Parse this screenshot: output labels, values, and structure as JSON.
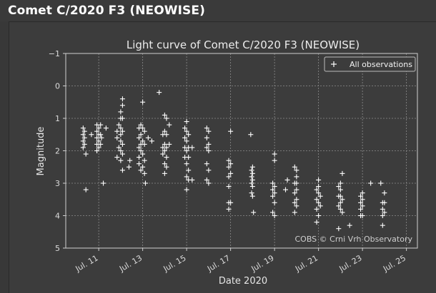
{
  "page": {
    "title": "Comet C/2020 F3 (NEOWISE)"
  },
  "chart_data": {
    "type": "scatter",
    "title": "Light curve of Comet C/2020 F3 (NEOWISE)",
    "xlabel": "Date 2020",
    "ylabel": "Magnitude",
    "x_type": "date",
    "xlim": [
      "2020-07-09T12:00",
      "2020-07-25T12:00"
    ],
    "ylim": [
      5,
      -1
    ],
    "y_inverted": true,
    "x_ticks": [
      {
        "date": "2020-07-11",
        "label": "Jul. 11"
      },
      {
        "date": "2020-07-13",
        "label": "Jul. 13"
      },
      {
        "date": "2020-07-15",
        "label": "Jul. 15"
      },
      {
        "date": "2020-07-17",
        "label": "Jul. 17"
      },
      {
        "date": "2020-07-19",
        "label": "Jul. 19"
      },
      {
        "date": "2020-07-21",
        "label": "Jul. 21"
      },
      {
        "date": "2020-07-23",
        "label": "Jul. 23"
      },
      {
        "date": "2020-07-25",
        "label": "Jul. 25"
      }
    ],
    "y_ticks": [
      -1,
      0,
      1,
      2,
      3,
      4,
      5
    ],
    "grid": true,
    "legend": {
      "position": "top-right",
      "entries": [
        "All observations"
      ]
    },
    "marker": "+",
    "marker_color": "#ffffff",
    "background_color": "#3c3c3c",
    "grid_color": "#8c8c8c",
    "annotation": "COBS © Crni Vrh Observatory",
    "series": [
      {
        "name": "All observations",
        "points": [
          [
            "2020-07-10T07:00",
            1.3
          ],
          [
            "2020-07-10T07:00",
            1.5
          ],
          [
            "2020-07-10T07:00",
            1.7
          ],
          [
            "2020-07-10T07:00",
            1.9
          ],
          [
            "2020-07-10T08:30",
            1.4
          ],
          [
            "2020-07-10T08:30",
            1.6
          ],
          [
            "2020-07-10T08:30",
            1.8
          ],
          [
            "2020-07-10T10:00",
            2.1
          ],
          [
            "2020-07-10T10:00",
            3.2
          ],
          [
            "2020-07-10T16:00",
            1.5
          ],
          [
            "2020-07-10T22:00",
            1.2
          ],
          [
            "2020-07-10T22:00",
            1.4
          ],
          [
            "2020-07-10T22:00",
            1.6
          ],
          [
            "2020-07-10T22:00",
            1.8
          ],
          [
            "2020-07-10T22:00",
            2.0
          ],
          [
            "2020-07-11T00:00",
            1.3
          ],
          [
            "2020-07-11T00:00",
            1.5
          ],
          [
            "2020-07-11T00:00",
            1.7
          ],
          [
            "2020-07-11T00:00",
            1.9
          ],
          [
            "2020-07-11T02:00",
            1.2
          ],
          [
            "2020-07-11T02:00",
            1.5
          ],
          [
            "2020-07-11T02:00",
            1.8
          ],
          [
            "2020-07-11T03:00",
            1.6
          ],
          [
            "2020-07-11T05:00",
            3.0
          ],
          [
            "2020-07-11T08:00",
            1.3
          ],
          [
            "2020-07-11T20:00",
            1.4
          ],
          [
            "2020-07-11T20:00",
            1.6
          ],
          [
            "2020-07-11T20:00",
            2.2
          ],
          [
            "2020-07-11T22:00",
            1.2
          ],
          [
            "2020-07-11T22:00",
            1.9
          ],
          [
            "2020-07-12T00:00",
            0.8
          ],
          [
            "2020-07-12T00:00",
            1.0
          ],
          [
            "2020-07-12T00:00",
            1.3
          ],
          [
            "2020-07-12T00:00",
            1.5
          ],
          [
            "2020-07-12T00:00",
            1.7
          ],
          [
            "2020-07-12T00:00",
            2.0
          ],
          [
            "2020-07-12T00:00",
            2.3
          ],
          [
            "2020-07-12T02:00",
            0.4
          ],
          [
            "2020-07-12T02:00",
            0.6
          ],
          [
            "2020-07-12T02:00",
            1.0
          ],
          [
            "2020-07-12T02:00",
            1.4
          ],
          [
            "2020-07-12T02:00",
            1.8
          ],
          [
            "2020-07-12T02:00",
            2.1
          ],
          [
            "2020-07-12T02:00",
            2.6
          ],
          [
            "2020-07-12T09:00",
            2.5
          ],
          [
            "2020-07-12T10:00",
            2.3
          ],
          [
            "2020-07-12T20:00",
            1.3
          ],
          [
            "2020-07-12T20:00",
            1.6
          ],
          [
            "2020-07-12T20:00",
            1.9
          ],
          [
            "2020-07-12T20:00",
            2.2
          ],
          [
            "2020-07-12T20:00",
            2.4
          ],
          [
            "2020-07-12T22:00",
            1.2
          ],
          [
            "2020-07-12T22:00",
            1.5
          ],
          [
            "2020-07-12T22:00",
            1.8
          ],
          [
            "2020-07-12T22:00",
            2.0
          ],
          [
            "2020-07-12T22:00",
            2.6
          ],
          [
            "2020-07-13T00:00",
            0.5
          ],
          [
            "2020-07-13T00:00",
            1.3
          ],
          [
            "2020-07-13T00:00",
            1.7
          ],
          [
            "2020-07-13T00:00",
            2.1
          ],
          [
            "2020-07-13T00:00",
            2.5
          ],
          [
            "2020-07-13T02:00",
            1.4
          ],
          [
            "2020-07-13T02:00",
            1.8
          ],
          [
            "2020-07-13T02:00",
            2.3
          ],
          [
            "2020-07-13T02:00",
            2.7
          ],
          [
            "2020-07-13T03:00",
            3.0
          ],
          [
            "2020-07-13T06:00",
            1.6
          ],
          [
            "2020-07-13T10:00",
            1.7
          ],
          [
            "2020-07-13T18:00",
            0.2
          ],
          [
            "2020-07-13T22:00",
            1.5
          ],
          [
            "2020-07-13T22:00",
            1.9
          ],
          [
            "2020-07-13T22:00",
            2.1
          ],
          [
            "2020-07-14T00:00",
            0.9
          ],
          [
            "2020-07-14T00:00",
            1.4
          ],
          [
            "2020-07-14T00:00",
            1.8
          ],
          [
            "2020-07-14T00:00",
            2.0
          ],
          [
            "2020-07-14T00:00",
            2.4
          ],
          [
            "2020-07-14T00:00",
            2.7
          ],
          [
            "2020-07-14T02:00",
            1.0
          ],
          [
            "2020-07-14T02:00",
            1.5
          ],
          [
            "2020-07-14T02:00",
            1.9
          ],
          [
            "2020-07-14T02:00",
            2.2
          ],
          [
            "2020-07-14T02:00",
            2.5
          ],
          [
            "2020-07-14T05:00",
            1.2
          ],
          [
            "2020-07-14T05:00",
            1.8
          ],
          [
            "2020-07-14T22:00",
            1.3
          ],
          [
            "2020-07-14T22:00",
            1.6
          ],
          [
            "2020-07-14T22:00",
            1.9
          ],
          [
            "2020-07-14T22:00",
            2.2
          ],
          [
            "2020-07-15T00:00",
            1.1
          ],
          [
            "2020-07-15T00:00",
            1.4
          ],
          [
            "2020-07-15T00:00",
            1.7
          ],
          [
            "2020-07-15T00:00",
            2.0
          ],
          [
            "2020-07-15T00:00",
            2.4
          ],
          [
            "2020-07-15T00:00",
            2.8
          ],
          [
            "2020-07-15T00:00",
            3.2
          ],
          [
            "2020-07-15T02:00",
            1.5
          ],
          [
            "2020-07-15T02:00",
            1.9
          ],
          [
            "2020-07-15T02:00",
            2.2
          ],
          [
            "2020-07-15T02:00",
            2.6
          ],
          [
            "2020-07-15T02:00",
            2.9
          ],
          [
            "2020-07-15T06:00",
            1.9
          ],
          [
            "2020-07-15T06:00",
            2.9
          ],
          [
            "2020-07-15T22:00",
            1.3
          ],
          [
            "2020-07-15T22:00",
            1.6
          ],
          [
            "2020-07-15T22:00",
            1.9
          ],
          [
            "2020-07-15T22:00",
            2.4
          ],
          [
            "2020-07-15T22:00",
            2.9
          ],
          [
            "2020-07-16T00:00",
            1.4
          ],
          [
            "2020-07-16T00:00",
            1.8
          ],
          [
            "2020-07-16T00:00",
            2.0
          ],
          [
            "2020-07-16T00:00",
            2.6
          ],
          [
            "2020-07-16T00:00",
            3.0
          ],
          [
            "2020-07-16T22:00",
            2.3
          ],
          [
            "2020-07-16T22:00",
            2.5
          ],
          [
            "2020-07-16T22:00",
            2.8
          ],
          [
            "2020-07-16T22:00",
            3.1
          ],
          [
            "2020-07-16T22:00",
            3.6
          ],
          [
            "2020-07-16T22:00",
            3.8
          ],
          [
            "2020-07-17T00:00",
            1.4
          ],
          [
            "2020-07-17T00:00",
            2.4
          ],
          [
            "2020-07-17T00:00",
            2.7
          ],
          [
            "2020-07-17T00:00",
            3.6
          ],
          [
            "2020-07-17T22:00",
            1.5
          ],
          [
            "2020-07-17T23:00",
            2.6
          ],
          [
            "2020-07-17T23:00",
            2.8
          ],
          [
            "2020-07-17T23:00",
            3.0
          ],
          [
            "2020-07-17T23:00",
            3.3
          ],
          [
            "2020-07-18T00:00",
            2.5
          ],
          [
            "2020-07-18T00:00",
            2.7
          ],
          [
            "2020-07-18T00:00",
            2.9
          ],
          [
            "2020-07-18T00:00",
            3.1
          ],
          [
            "2020-07-18T00:00",
            3.4
          ],
          [
            "2020-07-18T01:00",
            3.9
          ],
          [
            "2020-07-18T22:00",
            3.0
          ],
          [
            "2020-07-18T22:00",
            3.2
          ],
          [
            "2020-07-18T22:00",
            3.4
          ],
          [
            "2020-07-18T22:00",
            3.9
          ],
          [
            "2020-07-19T00:00",
            2.1
          ],
          [
            "2020-07-19T00:00",
            2.3
          ],
          [
            "2020-07-19T00:00",
            3.1
          ],
          [
            "2020-07-19T00:00",
            3.3
          ],
          [
            "2020-07-19T00:00",
            3.6
          ],
          [
            "2020-07-19T00:00",
            4.0
          ],
          [
            "2020-07-19T12:00",
            3.2
          ],
          [
            "2020-07-19T14:00",
            2.9
          ],
          [
            "2020-07-19T22:00",
            2.5
          ],
          [
            "2020-07-19T22:00",
            3.0
          ],
          [
            "2020-07-19T22:00",
            3.3
          ],
          [
            "2020-07-19T22:00",
            3.6
          ],
          [
            "2020-07-19T22:00",
            3.9
          ],
          [
            "2020-07-20T00:00",
            2.6
          ],
          [
            "2020-07-20T00:00",
            2.8
          ],
          [
            "2020-07-20T00:00",
            3.0
          ],
          [
            "2020-07-20T00:00",
            3.2
          ],
          [
            "2020-07-20T00:00",
            3.5
          ],
          [
            "2020-07-20T00:00",
            3.7
          ],
          [
            "2020-07-20T22:00",
            3.2
          ],
          [
            "2020-07-20T22:00",
            3.5
          ],
          [
            "2020-07-20T22:00",
            3.8
          ],
          [
            "2020-07-20T22:00",
            4.2
          ],
          [
            "2020-07-21T00:00",
            2.9
          ],
          [
            "2020-07-21T00:00",
            3.1
          ],
          [
            "2020-07-21T00:00",
            3.3
          ],
          [
            "2020-07-21T00:00",
            3.6
          ],
          [
            "2020-07-21T00:00",
            4.0
          ],
          [
            "2020-07-21T02:00",
            3.4
          ],
          [
            "2020-07-21T02:00",
            3.7
          ],
          [
            "2020-07-21T22:00",
            3.1
          ],
          [
            "2020-07-21T22:00",
            3.4
          ],
          [
            "2020-07-21T22:00",
            3.7
          ],
          [
            "2020-07-21T22:00",
            4.4
          ],
          [
            "2020-07-22T00:00",
            3.0
          ],
          [
            "2020-07-22T00:00",
            3.2
          ],
          [
            "2020-07-22T00:00",
            3.4
          ],
          [
            "2020-07-22T00:00",
            3.6
          ],
          [
            "2020-07-22T00:00",
            3.8
          ],
          [
            "2020-07-22T02:00",
            2.7
          ],
          [
            "2020-07-22T02:00",
            3.5
          ],
          [
            "2020-07-22T02:00",
            3.9
          ],
          [
            "2020-07-22T10:00",
            4.3
          ],
          [
            "2020-07-22T22:00",
            3.4
          ],
          [
            "2020-07-22T22:00",
            3.6
          ],
          [
            "2020-07-22T22:00",
            3.8
          ],
          [
            "2020-07-22T22:00",
            4.0
          ],
          [
            "2020-07-23T00:00",
            3.3
          ],
          [
            "2020-07-23T00:00",
            3.5
          ],
          [
            "2020-07-23T00:00",
            3.7
          ],
          [
            "2020-07-23T00:00",
            4.0
          ],
          [
            "2020-07-23T09:00",
            3.0
          ],
          [
            "2020-07-23T20:00",
            3.0
          ],
          [
            "2020-07-23T22:00",
            3.6
          ],
          [
            "2020-07-23T22:00",
            3.8
          ],
          [
            "2020-07-23T22:00",
            4.0
          ],
          [
            "2020-07-23T22:00",
            4.3
          ],
          [
            "2020-07-24T00:00",
            3.3
          ],
          [
            "2020-07-24T00:00",
            3.6
          ],
          [
            "2020-07-24T00:00",
            3.9
          ]
        ]
      }
    ]
  }
}
